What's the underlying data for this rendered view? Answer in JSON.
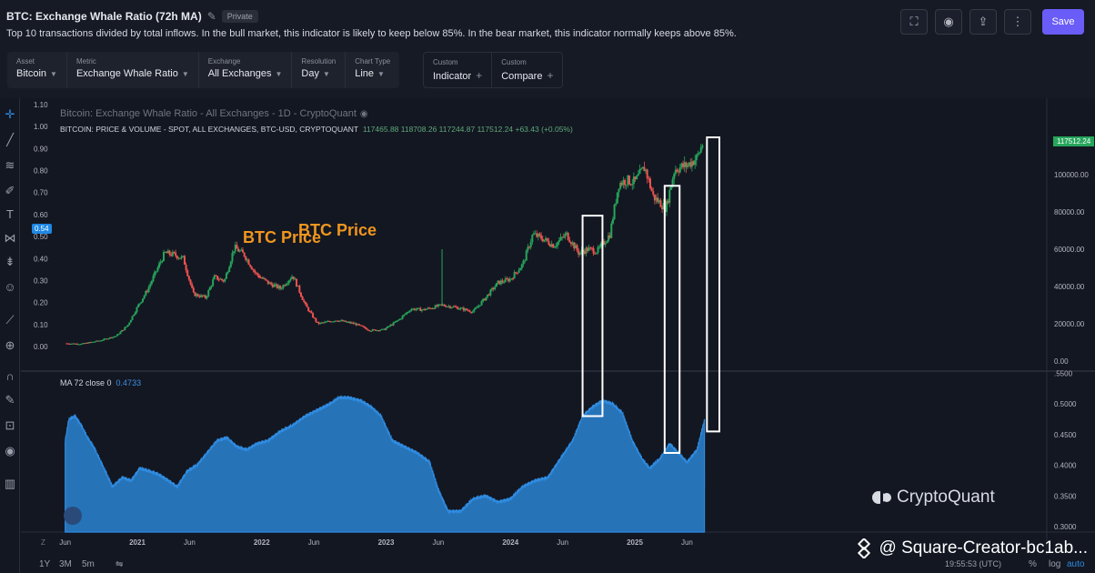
{
  "header": {
    "title": "BTC: Exchange Whale Ratio (72h MA)",
    "private_label": "Private",
    "description": "Top 10 transactions divided by total inflows. In the bull market, this indicator is likely to keep below 85%. In the bear market, this indicator normally keeps above 85%.",
    "save_label": "Save",
    "icons": [
      "fullscreen-icon",
      "camera-icon",
      "share-icon",
      "more-icon"
    ]
  },
  "selectors": [
    {
      "label": "Asset",
      "value": "Bitcoin"
    },
    {
      "label": "Metric",
      "value": "Exchange Whale Ratio"
    },
    {
      "label": "Exchange",
      "value": "All Exchanges"
    },
    {
      "label": "Resolution",
      "value": "Day"
    },
    {
      "label": "Chart Type",
      "value": "Line"
    }
  ],
  "customs": [
    {
      "label": "Custom",
      "value": "Indicator"
    },
    {
      "label": "Custom",
      "value": "Compare"
    }
  ],
  "chart_data": {
    "type": "line",
    "legend_main": "Bitcoin: Exchange Whale Ratio - All Exchanges - 1D - CryptoQuant",
    "legend_price": "BITCOIN: PRICE & VOLUME - SPOT, ALL EXCHANGES, BTC-USD, CRYPTOQUANT",
    "ohlc": "117465.88  118708.26  117244.87  117512.24  +63.43 (+0.05%)",
    "ma_label": "MA 72 close 0",
    "ma_value": "0.4733",
    "annotations": [
      "BTC Price",
      "BTC Price"
    ],
    "current_price_label": "117512.24",
    "whale_badge": "0.54",
    "left_ticks": [
      "1.10",
      "1.00",
      "0.90",
      "0.80",
      "0.70",
      "0.60",
      "0.50",
      "0.40",
      "0.30",
      "0.20",
      "0.10",
      "0.00"
    ],
    "price_ticks": [
      "100000.00",
      "80000.00",
      "60000.00",
      "40000.00",
      "20000.00",
      "0.00"
    ],
    "ma_ticks": [
      ".5500",
      "0.5000",
      "0.4500",
      "0.4000",
      "0.3500",
      "0.3000"
    ],
    "x_ticks": [
      {
        "label": "Jun",
        "t": 2020.42
      },
      {
        "label": "2021",
        "t": 2021.0
      },
      {
        "label": "Jun",
        "t": 2021.42
      },
      {
        "label": "2022",
        "t": 2022.0
      },
      {
        "label": "Jun",
        "t": 2022.42
      },
      {
        "label": "2023",
        "t": 2023.0
      },
      {
        "label": "Jun",
        "t": 2023.42
      },
      {
        "label": "2024",
        "t": 2024.0
      },
      {
        "label": "Jun",
        "t": 2024.42
      },
      {
        "label": "2025",
        "t": 2025.0
      },
      {
        "label": "Jun",
        "t": 2025.42
      }
    ],
    "price_series": {
      "t": [
        2020.42,
        2020.55,
        2020.7,
        2020.83,
        2020.92,
        2021.0,
        2021.08,
        2021.15,
        2021.22,
        2021.3,
        2021.37,
        2021.45,
        2021.55,
        2021.62,
        2021.7,
        2021.78,
        2021.86,
        2021.95,
        2022.05,
        2022.15,
        2022.25,
        2022.35,
        2022.45,
        2022.6,
        2022.75,
        2022.87,
        2022.98,
        2023.1,
        2023.2,
        2023.3,
        2023.45,
        2023.55,
        2023.7,
        2023.8,
        2023.9,
        2024.0,
        2024.1,
        2024.18,
        2024.25,
        2024.35,
        2024.45,
        2024.55,
        2024.62,
        2024.7,
        2024.8,
        2024.87,
        2024.93,
        2025.0,
        2025.08,
        2025.15,
        2025.25,
        2025.32,
        2025.42,
        2025.5,
        2025.55
      ],
      "v": [
        9500,
        9200,
        11000,
        13500,
        19000,
        29000,
        38000,
        48000,
        58000,
        57000,
        55000,
        36000,
        34000,
        45000,
        43000,
        61000,
        57000,
        47000,
        42000,
        39000,
        46000,
        30000,
        20000,
        22000,
        20000,
        16500,
        16800,
        22000,
        28000,
        27500,
        30000,
        29000,
        26500,
        34000,
        42000,
        44000,
        52000,
        68000,
        66000,
        62000,
        68000,
        58000,
        60000,
        59000,
        68000,
        95000,
        97000,
        96000,
        104000,
        88000,
        82000,
        103000,
        105000,
        109000,
        117512
      ]
    },
    "ma_series": {
      "t": [
        2020.42,
        2020.45,
        2020.5,
        2020.55,
        2020.6,
        2020.65,
        2020.72,
        2020.8,
        2020.88,
        2020.95,
        2021.02,
        2021.1,
        2021.17,
        2021.25,
        2021.32,
        2021.4,
        2021.48,
        2021.56,
        2021.64,
        2021.72,
        2021.8,
        2021.88,
        2021.96,
        2022.05,
        2022.15,
        2022.25,
        2022.35,
        2022.45,
        2022.55,
        2022.62,
        2022.7,
        2022.8,
        2022.88,
        2022.96,
        2023.05,
        2023.15,
        2023.25,
        2023.35,
        2023.42,
        2023.5,
        2023.6,
        2023.7,
        2023.8,
        2023.9,
        2024.0,
        2024.1,
        2024.2,
        2024.3,
        2024.4,
        2024.5,
        2024.58,
        2024.66,
        2024.74,
        2024.82,
        2024.9,
        2024.98,
        2025.06,
        2025.12,
        2025.2,
        2025.28,
        2025.35,
        2025.42,
        2025.5,
        2025.56
      ],
      "v": [
        0.44,
        0.475,
        0.48,
        0.465,
        0.445,
        0.43,
        0.4,
        0.365,
        0.38,
        0.375,
        0.395,
        0.39,
        0.385,
        0.375,
        0.365,
        0.39,
        0.4,
        0.42,
        0.44,
        0.445,
        0.43,
        0.425,
        0.435,
        0.44,
        0.455,
        0.465,
        0.48,
        0.49,
        0.5,
        0.51,
        0.51,
        0.505,
        0.495,
        0.48,
        0.44,
        0.43,
        0.42,
        0.405,
        0.36,
        0.325,
        0.325,
        0.345,
        0.35,
        0.34,
        0.345,
        0.365,
        0.375,
        0.38,
        0.41,
        0.44,
        0.48,
        0.495,
        0.505,
        0.5,
        0.485,
        0.44,
        0.41,
        0.395,
        0.41,
        0.435,
        0.42,
        0.405,
        0.425,
        0.4733
      ]
    },
    "highlight_boxes": [
      {
        "t0": 2024.58,
        "t1": 2024.74,
        "ma_low": 0.48,
        "price_high": 78000
      },
      {
        "t0": 2025.24,
        "t1": 2025.36,
        "ma_low": 0.42,
        "price_high": 94000
      },
      {
        "t0": 2025.58,
        "t1": 2025.68,
        "ma_low": 0.455,
        "price_high": 120000
      }
    ]
  },
  "branding": {
    "cryptoquant": "CryptoQuant",
    "watermark": "@ Square-Creator-bc1ab..."
  },
  "bottom_bar": {
    "ranges": [
      "1Y",
      "3M",
      "5m"
    ],
    "time": "19:55:53 (UTC)",
    "percent": "%",
    "log": "log",
    "auto": "auto"
  },
  "colors": {
    "background": "#131722",
    "area_fill": "#2673b8",
    "area_line": "#2f8be0",
    "annotation": "#f0961e",
    "up": "#26a65b",
    "down": "#ef5350"
  }
}
